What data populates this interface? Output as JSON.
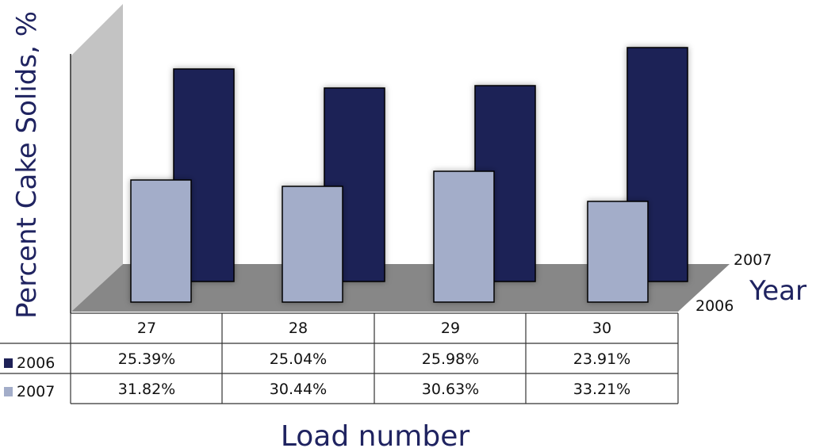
{
  "chart_data": {
    "type": "bar",
    "categories": [
      "27",
      "28",
      "29",
      "30"
    ],
    "series": [
      {
        "name": "2006",
        "color": "#1e2157",
        "values": [
          25.39,
          25.04,
          25.98,
          23.91
        ],
        "labels": [
          "25.39%",
          "25.04%",
          "25.98%",
          "23.91%"
        ]
      },
      {
        "name": "2007",
        "color": "#a3adc9",
        "values": [
          31.82,
          30.44,
          30.63,
          33.21
        ],
        "labels": [
          "31.82%",
          "30.44%",
          "30.63%",
          "33.21%"
        ]
      }
    ],
    "ylabel": "Percent Cake Solids, %",
    "xlabel": "Load number",
    "depth_label": "Year",
    "depth_ticks": [
      "2007",
      "2006"
    ],
    "legend": "data-table-left",
    "style": "3d-depth-with-data-table"
  }
}
